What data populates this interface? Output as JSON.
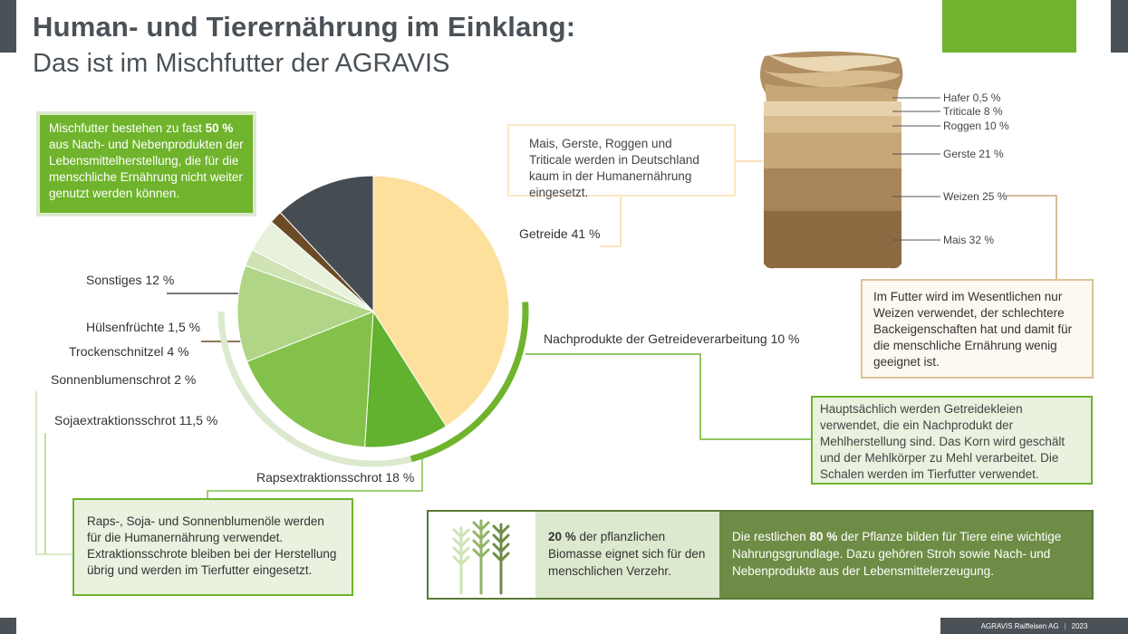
{
  "header": {
    "title": "Human- und Tierernährung im Einklang:",
    "subtitle": "Das ist im Mischfutter der AGRAVIS"
  },
  "colors": {
    "brand_green": "#6fb42c",
    "dark_grey": "#4a5157",
    "panel_dark_green": "#6e8c45",
    "light_green": "#e9f1df"
  },
  "chart_data": [
    {
      "type": "pie",
      "slices": [
        {
          "label": "Getreide 41 %",
          "value": 41,
          "color": "#fde09c"
        },
        {
          "label": "Nachprodukte der Getreideverarbeitung 10 %",
          "value": 10,
          "color": "#62b12f"
        },
        {
          "label": "Rapsextraktionsschrot 18 %",
          "value": 18,
          "color": "#84c14a"
        },
        {
          "label": "Sojaextraktionsschrot 11,5 %",
          "value": 11.5,
          "color": "#b0d587"
        },
        {
          "label": "Sonnenblumenschrot 2 %",
          "value": 2,
          "color": "#cfe3b5"
        },
        {
          "label": "Trockenschnitzel 4 %",
          "value": 4,
          "color": "#e8f1dc"
        },
        {
          "label": "Hülsenfrüchte 1,5 %",
          "value": 1.5,
          "color": "#6b4a26"
        },
        {
          "label": "Sonstiges 12 %",
          "value": 12,
          "color": "#454c52"
        }
      ]
    },
    {
      "type": "stacked-bar",
      "segments": [
        {
          "label": "Hafer 0,5 %",
          "value": 0.5,
          "color": "#ead7b4"
        },
        {
          "label": "Triticale 8 %",
          "value": 8,
          "color": "#e6d1ac"
        },
        {
          "label": "Roggen 10 %",
          "value": 10,
          "color": "#d9bc8e"
        },
        {
          "label": "Gerste 21 %",
          "value": 21,
          "color": "#c7a778"
        },
        {
          "label": "Weizen 25 %",
          "value": 25,
          "color": "#a88559"
        },
        {
          "label": "Mais 32 %",
          "value": 32,
          "color": "#8c6b42"
        }
      ]
    }
  ],
  "boxes": {
    "intro": {
      "pre": "Mischfutter bestehen zu fast ",
      "bold": "50 %",
      "post": " aus Nach- und Nebenprodukten der Lebensmittelherstellung, die für die menschliche Ernährung nicht weiter genutzt werden können."
    },
    "grain": "Mais, Gerste, Roggen und Triticale werden in Deutschland kaum in der Humanernährung eingesetzt.",
    "wheat": "Im Futter wird im Wesentlichen nur Weizen verwendet, der schlechtere Backeigenschaften hat und damit für die menschliche Ernährung wenig geeignet ist.",
    "bran": "Hauptsächlich werden Getreidekleien verwendet, die ein Nachprodukt der Mehlherstellung sind. Das Korn wird geschält und der Mehlkörper zu Mehl verarbeitet. Die Schalen werden im Tierfutter verwendet.",
    "oil": "Raps-, Soja- und Sonnenblumenöle werden für die Humanernährung verwendet. Extraktionsschrote bleiben bei der Herstellung übrig und werden im Tierfutter eingesetzt."
  },
  "bottom_panel": {
    "left_bold": "20 %",
    "left_text": " der pflanzlichen Biomasse eignet sich für den menschlichen Verzehr.",
    "right_pre": "Die restlichen ",
    "right_bold": "80 %",
    "right_post": " der Pflanze bilden für Tiere eine wichtige Nahrungsgrundlage. Dazu gehören Stroh sowie Nach- und Nebenprodukte aus der Lebensmittelerzeugung."
  },
  "footer": {
    "company": "AGRAVIS Raiffeisen AG",
    "separator": "|",
    "year": "2023"
  }
}
